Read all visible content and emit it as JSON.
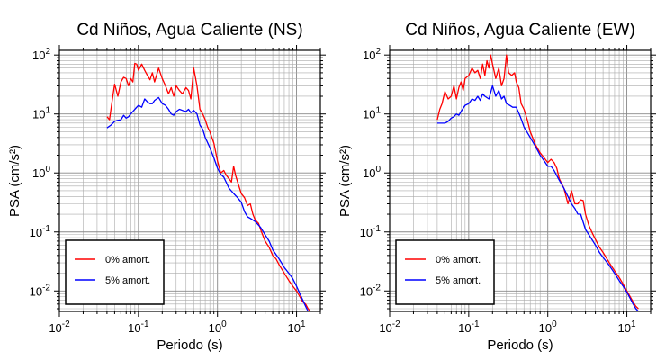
{
  "chart_data": [
    {
      "type": "line",
      "title": "Cd Niños, Agua Caliente (NS)",
      "xlabel": "Periodo (s)",
      "ylabel": "PSA (cm/s²)",
      "xscale": "log",
      "yscale": "log",
      "xlim": [
        0.01,
        20
      ],
      "ylim": [
        0.0045,
        120
      ],
      "grid": true,
      "legend_position": "bottom-left",
      "x_ticks": [
        {
          "base": "10",
          "exp": "-2"
        },
        {
          "base": "10",
          "exp": "-1"
        },
        {
          "base": "10",
          "exp": "0"
        },
        {
          "base": "10",
          "exp": "1"
        }
      ],
      "y_ticks": [
        {
          "base": "10",
          "exp": "-2"
        },
        {
          "base": "10",
          "exp": "-1"
        },
        {
          "base": "10",
          "exp": "0"
        },
        {
          "base": "10",
          "exp": "1"
        },
        {
          "base": "10",
          "exp": "2"
        }
      ],
      "series": [
        {
          "name": "0% amort.",
          "color": "#ff0000",
          "x": [
            0.04,
            0.043,
            0.046,
            0.05,
            0.055,
            0.06,
            0.065,
            0.07,
            0.075,
            0.08,
            0.085,
            0.09,
            0.095,
            0.1,
            0.11,
            0.12,
            0.13,
            0.14,
            0.15,
            0.16,
            0.18,
            0.2,
            0.22,
            0.24,
            0.26,
            0.28,
            0.3,
            0.33,
            0.36,
            0.4,
            0.43,
            0.46,
            0.5,
            0.55,
            0.6,
            0.65,
            0.7,
            0.75,
            0.8,
            0.85,
            0.9,
            1.0,
            1.1,
            1.2,
            1.3,
            1.4,
            1.5,
            1.6,
            1.7,
            1.8,
            2.0,
            2.2,
            2.4,
            2.6,
            2.8,
            3.0,
            3.3,
            3.6,
            4.0,
            4.5,
            5.0,
            5.5,
            6.0,
            7.0,
            8.0,
            9.0,
            10.0,
            11.0,
            12.0,
            13.0,
            14.0,
            15.0
          ],
          "y": [
            9,
            8,
            15,
            32,
            20,
            35,
            42,
            40,
            30,
            40,
            35,
            72,
            70,
            55,
            70,
            55,
            45,
            38,
            50,
            35,
            60,
            40,
            30,
            22,
            28,
            20,
            30,
            25,
            22,
            28,
            25,
            18,
            60,
            30,
            12,
            10,
            8,
            6,
            5,
            4,
            3.2,
            1.6,
            1.0,
            1.1,
            0.9,
            0.8,
            0.7,
            1.3,
            0.9,
            0.7,
            0.45,
            0.38,
            0.28,
            0.3,
            0.2,
            0.16,
            0.14,
            0.1,
            0.07,
            0.055,
            0.04,
            0.035,
            0.028,
            0.02,
            0.015,
            0.012,
            0.01,
            0.008,
            0.0065,
            0.006,
            0.005,
            0.0045
          ]
        },
        {
          "name": "5% amort.",
          "color": "#0000ff",
          "x": [
            0.04,
            0.045,
            0.05,
            0.055,
            0.06,
            0.065,
            0.07,
            0.075,
            0.08,
            0.09,
            0.1,
            0.11,
            0.12,
            0.13,
            0.14,
            0.15,
            0.16,
            0.18,
            0.2,
            0.22,
            0.24,
            0.26,
            0.28,
            0.3,
            0.33,
            0.36,
            0.4,
            0.43,
            0.46,
            0.5,
            0.55,
            0.6,
            0.65,
            0.7,
            0.8,
            0.9,
            1.0,
            1.1,
            1.2,
            1.4,
            1.6,
            1.8,
            2.0,
            2.2,
            2.4,
            2.6,
            3.0,
            3.5,
            4.0,
            4.5,
            5.0,
            6.0,
            7.0,
            8.0,
            9.0,
            10.0,
            11.0,
            12.0,
            13.0,
            14.0
          ],
          "y": [
            5.8,
            6.5,
            7.5,
            7.8,
            8,
            9.5,
            8.5,
            9,
            10,
            12,
            14,
            13,
            18,
            16,
            15,
            15,
            17,
            19,
            15,
            14,
            12,
            10,
            9.5,
            11,
            12,
            11.5,
            11,
            12,
            10.5,
            11.5,
            10,
            6.5,
            5.5,
            4.0,
            2.7,
            1.8,
            1.2,
            0.95,
            0.85,
            0.55,
            0.45,
            0.38,
            0.32,
            0.22,
            0.18,
            0.17,
            0.15,
            0.12,
            0.09,
            0.07,
            0.05,
            0.035,
            0.025,
            0.02,
            0.016,
            0.012,
            0.009,
            0.007,
            0.0055,
            0.0045
          ]
        }
      ]
    },
    {
      "type": "line",
      "title": "Cd Niños, Agua Caliente (EW)",
      "xlabel": "Periodo (s)",
      "ylabel": "PSA (cm/s²)",
      "xscale": "log",
      "yscale": "log",
      "xlim": [
        0.01,
        20
      ],
      "ylim": [
        0.0045,
        120
      ],
      "grid": true,
      "legend_position": "bottom-left",
      "x_ticks": [
        {
          "base": "10",
          "exp": "-2"
        },
        {
          "base": "10",
          "exp": "-1"
        },
        {
          "base": "10",
          "exp": "0"
        },
        {
          "base": "10",
          "exp": "1"
        }
      ],
      "y_ticks": [
        {
          "base": "10",
          "exp": "-2"
        },
        {
          "base": "10",
          "exp": "-1"
        },
        {
          "base": "10",
          "exp": "0"
        },
        {
          "base": "10",
          "exp": "1"
        },
        {
          "base": "10",
          "exp": "2"
        }
      ],
      "series": [
        {
          "name": "0% amort.",
          "color": "#ff0000",
          "x": [
            0.04,
            0.043,
            0.046,
            0.05,
            0.055,
            0.06,
            0.065,
            0.07,
            0.075,
            0.08,
            0.085,
            0.09,
            0.1,
            0.11,
            0.12,
            0.13,
            0.14,
            0.15,
            0.16,
            0.17,
            0.18,
            0.19,
            0.2,
            0.22,
            0.24,
            0.26,
            0.28,
            0.3,
            0.32,
            0.35,
            0.38,
            0.4,
            0.43,
            0.46,
            0.5,
            0.55,
            0.6,
            0.7,
            0.8,
            0.9,
            1.0,
            1.1,
            1.2,
            1.3,
            1.4,
            1.6,
            1.8,
            2.0,
            2.2,
            2.4,
            2.6,
            2.8,
            3.0,
            3.3,
            3.6,
            4.0,
            4.5,
            5.0,
            6.0,
            7.0,
            8.0,
            9.0,
            10.0,
            11.0,
            12.0,
            13.0,
            14.0
          ],
          "y": [
            8,
            12,
            15,
            24,
            18,
            20,
            30,
            18,
            28,
            35,
            25,
            40,
            45,
            60,
            50,
            55,
            40,
            70,
            45,
            80,
            60,
            100,
            70,
            40,
            60,
            30,
            40,
            100,
            50,
            45,
            50,
            35,
            28,
            15,
            12,
            8,
            5,
            3,
            2.2,
            1.8,
            1.5,
            1.7,
            1.5,
            1.2,
            0.8,
            0.55,
            0.3,
            0.5,
            0.3,
            0.3,
            0.35,
            0.34,
            0.2,
            0.13,
            0.1,
            0.075,
            0.055,
            0.045,
            0.03,
            0.022,
            0.017,
            0.013,
            0.01,
            0.008,
            0.0065,
            0.0055,
            0.005
          ]
        },
        {
          "name": "5% amort.",
          "color": "#0000ff",
          "x": [
            0.04,
            0.045,
            0.05,
            0.055,
            0.06,
            0.065,
            0.07,
            0.075,
            0.08,
            0.09,
            0.1,
            0.11,
            0.12,
            0.13,
            0.14,
            0.15,
            0.16,
            0.18,
            0.2,
            0.22,
            0.24,
            0.26,
            0.28,
            0.3,
            0.33,
            0.36,
            0.4,
            0.45,
            0.5,
            0.6,
            0.7,
            0.8,
            0.9,
            1.0,
            1.1,
            1.2,
            1.4,
            1.6,
            1.8,
            2.0,
            2.2,
            2.4,
            2.6,
            3.0,
            3.5,
            4.0,
            4.5,
            5.0,
            6.0,
            7.0,
            8.0,
            9.0,
            10.0,
            11.0,
            12.0,
            13.0,
            14.0
          ],
          "y": [
            7,
            7,
            7,
            7.5,
            8.5,
            9,
            10,
            9.5,
            11,
            14,
            15,
            18,
            17,
            20,
            17,
            22,
            20,
            18,
            30,
            20,
            25,
            18,
            20,
            15,
            14,
            13,
            13,
            9,
            6,
            4,
            2.8,
            2.0,
            1.6,
            1.3,
            1.3,
            1.1,
            0.75,
            0.55,
            0.4,
            0.3,
            0.25,
            0.2,
            0.2,
            0.11,
            0.08,
            0.06,
            0.045,
            0.037,
            0.027,
            0.02,
            0.015,
            0.012,
            0.0095,
            0.0075,
            0.006,
            0.005,
            0.0045
          ]
        }
      ]
    }
  ]
}
